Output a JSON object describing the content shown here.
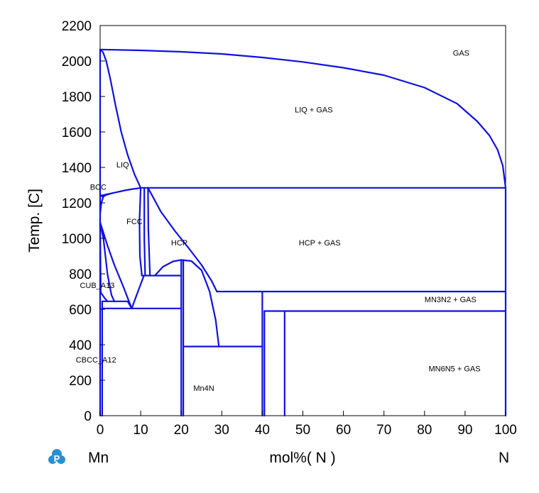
{
  "chart_data": {
    "type": "line",
    "title": "",
    "xlabel": "mol%( N )",
    "ylabel": "Temp. [C]",
    "xlim": [
      0,
      100
    ],
    "ylim": [
      0,
      2200
    ],
    "x_ticks": [
      0,
      10,
      20,
      30,
      40,
      50,
      60,
      70,
      80,
      90,
      100
    ],
    "y_ticks": [
      0,
      200,
      400,
      600,
      800,
      1000,
      1200,
      1400,
      1600,
      1800,
      2000,
      2200
    ],
    "x_end_labels": {
      "left": "Mn",
      "right": "N"
    },
    "grid": false,
    "line_color": "#1010e0",
    "logo_color": "#2a8fd0",
    "regions": [
      {
        "label": "GAS",
        "x": 87,
        "y": 2030
      },
      {
        "label": "LIQ + GAS",
        "x": 48,
        "y": 1710
      },
      {
        "label": "LIQ",
        "x": 4,
        "y": 1400
      },
      {
        "label": "BCC",
        "x": -2.5,
        "y": 1275
      },
      {
        "label": "FCC",
        "x": 6.5,
        "y": 1080
      },
      {
        "label": "HCP",
        "x": 17.5,
        "y": 960
      },
      {
        "label": "HCP + GAS",
        "x": 49,
        "y": 960
      },
      {
        "label": "CUB_A13",
        "x": -5,
        "y": 720
      },
      {
        "label": "MN3N2 + GAS",
        "x": 80,
        "y": 640
      },
      {
        "label": "CBCC_A12",
        "x": -6,
        "y": 300
      },
      {
        "label": "MN6N5 + GAS",
        "x": 81,
        "y": 250
      },
      {
        "label": "Mn4N",
        "x": 23,
        "y": 140
      }
    ],
    "series": [
      {
        "points": [
          [
            0,
            2065
          ],
          [
            10,
            2060
          ],
          [
            20,
            2052
          ],
          [
            30,
            2040
          ],
          [
            40,
            2020
          ],
          [
            50,
            1995
          ],
          [
            60,
            1962
          ],
          [
            70,
            1920
          ],
          [
            80,
            1850
          ],
          [
            88,
            1760
          ],
          [
            93,
            1660
          ],
          [
            96,
            1580
          ],
          [
            98,
            1500
          ],
          [
            99.3,
            1410
          ],
          [
            100,
            1285
          ]
        ]
      },
      {
        "points": [
          [
            0,
            2065
          ],
          [
            0.7,
            2050
          ],
          [
            1.5,
            2000
          ],
          [
            2.5,
            1900
          ],
          [
            3.8,
            1750
          ],
          [
            5.2,
            1600
          ],
          [
            6.8,
            1470
          ],
          [
            8.5,
            1360
          ],
          [
            10,
            1285
          ]
        ]
      },
      {
        "points": [
          [
            0,
            2065
          ],
          [
            0,
            0
          ]
        ]
      },
      {
        "points": [
          [
            100,
            1285
          ],
          [
            100,
            0
          ]
        ]
      },
      {
        "points": [
          [
            0,
            1240
          ],
          [
            3,
            1255
          ],
          [
            6,
            1270
          ],
          [
            8,
            1278
          ],
          [
            10,
            1284
          ]
        ]
      },
      {
        "points": [
          [
            0,
            1240
          ],
          [
            0.8,
            1236
          ],
          [
            1.5,
            1245
          ],
          [
            3,
            1255
          ]
        ]
      },
      {
        "points": [
          [
            0,
            1140
          ],
          [
            0.3,
            1200
          ],
          [
            0.8,
            1236
          ]
        ]
      },
      {
        "points": [
          [
            10,
            1285
          ],
          [
            100,
            1285
          ]
        ]
      },
      {
        "points": [
          [
            0,
            1090
          ],
          [
            1.8,
            960
          ],
          [
            3.5,
            850
          ],
          [
            5.5,
            740
          ],
          [
            7.8,
            605
          ]
        ]
      },
      {
        "points": [
          [
            0,
            1090
          ],
          [
            0.8,
            1000
          ],
          [
            1.8,
            800
          ],
          [
            2.8,
            680
          ],
          [
            3.5,
            645
          ]
        ]
      },
      {
        "points": [
          [
            0,
            1090
          ],
          [
            0.1,
            800
          ],
          [
            0.15,
            700
          ]
        ]
      },
      {
        "points": [
          [
            0,
            700
          ],
          [
            1.2,
            660
          ],
          [
            1.8,
            645
          ]
        ]
      },
      {
        "points": [
          [
            0.5,
            645
          ],
          [
            6.8,
            645
          ],
          [
            7.8,
            605
          ]
        ]
      },
      {
        "points": [
          [
            7.8,
            605
          ],
          [
            9,
            680
          ],
          [
            10.8,
            790
          ]
        ]
      },
      {
        "points": [
          [
            0.5,
            605
          ],
          [
            20,
            605
          ]
        ]
      },
      {
        "points": [
          [
            0.5,
            645
          ],
          [
            0.5,
            0
          ]
        ]
      },
      {
        "points": [
          [
            10,
            1285
          ],
          [
            9.7,
            1100
          ],
          [
            9.8,
            900
          ],
          [
            10.3,
            790
          ]
        ]
      },
      {
        "points": [
          [
            10.3,
            790
          ],
          [
            20,
            790
          ]
        ]
      },
      {
        "points": [
          [
            10.9,
            1285
          ],
          [
            10.9,
            1000
          ],
          [
            11.1,
            790
          ]
        ]
      },
      {
        "points": [
          [
            11.8,
            1285
          ],
          [
            11.9,
            1050
          ],
          [
            12.3,
            790
          ]
        ]
      },
      {
        "points": [
          [
            11.8,
            1285
          ],
          [
            15,
            1150
          ],
          [
            18.5,
            1040
          ],
          [
            22,
            940
          ],
          [
            25,
            850
          ],
          [
            27.5,
            760
          ],
          [
            28.8,
            700
          ]
        ]
      },
      {
        "points": [
          [
            13.5,
            790
          ],
          [
            15.5,
            840
          ],
          [
            18,
            870
          ],
          [
            20,
            878
          ],
          [
            22.5,
            872
          ],
          [
            25,
            820
          ],
          [
            27,
            700
          ],
          [
            28.5,
            540
          ],
          [
            29.3,
            390
          ]
        ]
      },
      {
        "points": [
          [
            20,
            878
          ],
          [
            20,
            0
          ]
        ]
      },
      {
        "points": [
          [
            20.5,
            878
          ],
          [
            20.5,
            0
          ]
        ]
      },
      {
        "points": [
          [
            20.5,
            390
          ],
          [
            40,
            390
          ]
        ]
      },
      {
        "points": [
          [
            28.8,
            700
          ],
          [
            100,
            700
          ]
        ]
      },
      {
        "points": [
          [
            40,
            700
          ],
          [
            40,
            0
          ]
        ]
      },
      {
        "points": [
          [
            40.5,
            590
          ],
          [
            40.5,
            0
          ]
        ]
      },
      {
        "points": [
          [
            40.5,
            590
          ],
          [
            100,
            590
          ]
        ]
      },
      {
        "points": [
          [
            45.5,
            590
          ],
          [
            45.5,
            0
          ]
        ]
      }
    ]
  }
}
